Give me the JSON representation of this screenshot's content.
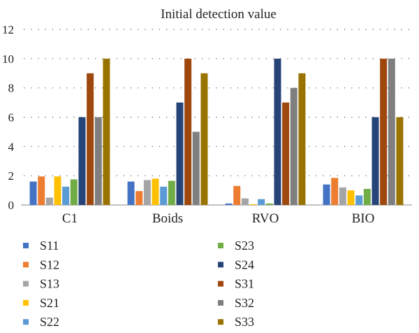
{
  "chart_data": {
    "type": "bar",
    "title": "Initial detection value",
    "xlabel": "",
    "ylabel": "",
    "ylim": [
      0,
      12
    ],
    "yticks": [
      0,
      2,
      4,
      6,
      8,
      10,
      12
    ],
    "grid": true,
    "legend_position": "bottom",
    "categories": [
      "C1",
      "Boids",
      "RVO",
      "BIO"
    ],
    "series": [
      {
        "name": "S11",
        "color": "#4472C4",
        "values": [
          1.6,
          1.6,
          0.1,
          1.4
        ]
      },
      {
        "name": "S12",
        "color": "#ED7D31",
        "values": [
          1.95,
          0.95,
          1.3,
          1.85
        ]
      },
      {
        "name": "S13",
        "color": "#A5A5A5",
        "values": [
          0.5,
          1.7,
          0.45,
          1.2
        ]
      },
      {
        "name": "S21",
        "color": "#FFC000",
        "values": [
          1.95,
          1.8,
          0.05,
          1.0
        ]
      },
      {
        "name": "S22",
        "color": "#5B9BD5",
        "values": [
          1.25,
          1.25,
          0.4,
          0.65
        ]
      },
      {
        "name": "S23",
        "color": "#70AD47",
        "values": [
          1.75,
          1.65,
          0.1,
          1.1
        ]
      },
      {
        "name": "S24",
        "color": "#264478",
        "values": [
          6,
          7,
          10,
          6
        ]
      },
      {
        "name": "S31",
        "color": "#9E480E",
        "values": [
          9,
          10,
          7,
          10
        ]
      },
      {
        "name": "S32",
        "color": "#7F7F7F",
        "values": [
          6,
          5,
          8,
          10
        ]
      },
      {
        "name": "S33",
        "color": "#997300",
        "values": [
          10,
          9,
          9,
          6
        ]
      }
    ]
  }
}
